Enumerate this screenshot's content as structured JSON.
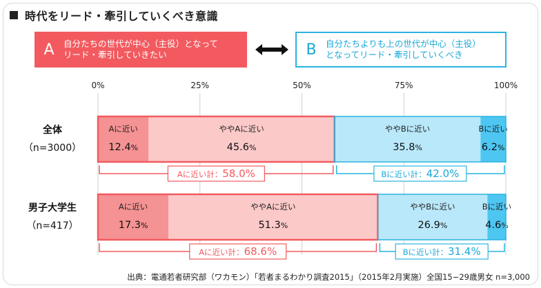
{
  "title": "時代をリード・牽引していくべき意識",
  "legend": {
    "a_letter": "A",
    "a_text": "自分たちの世代が中心（主役）となって\nリード・牽引していきたい",
    "b_letter": "B",
    "b_text": "自分たちよりも上の世代が中心（主役）\nとなってリード・牽引していくべき"
  },
  "source": "出典：電通若者研究部（ワカモン）「若者まるわかり調査2015」（2015年2月実施）全国15−29歳男女 n=3,000",
  "colors": {
    "a_strong": "#f59293",
    "a_light": "#fcc9c9",
    "b_light": "#b9e8fa",
    "b_strong": "#4dc6f2",
    "a_border": "#f25a5f",
    "b_border": "#29b3e0"
  },
  "chart_data": {
    "type": "bar",
    "stacked": true,
    "orientation": "horizontal",
    "xlim": [
      0,
      100
    ],
    "x_ticks": [
      "0%",
      "25%",
      "50%",
      "75%",
      "100%"
    ],
    "x_tick_values": [
      0,
      25,
      50,
      75,
      100
    ],
    "value_suffix": "%",
    "categories": [
      {
        "name": "全体",
        "n": "（n=3000）"
      },
      {
        "name": "男子大学生",
        "n": "（n=417）"
      }
    ],
    "series": [
      {
        "name": "Aに近い",
        "values": [
          12.4,
          17.3
        ],
        "labels": [
          "12.4",
          "17.3"
        ]
      },
      {
        "name": "ややAに近い",
        "values": [
          45.6,
          51.3
        ],
        "labels": [
          "45.6",
          "51.3"
        ]
      },
      {
        "name": "ややBに近い",
        "values": [
          35.8,
          26.9
        ],
        "labels": [
          "35.8",
          "26.9"
        ]
      },
      {
        "name": "Bに近い",
        "values": [
          6.2,
          4.6
        ],
        "labels": [
          "6.2",
          "4.6"
        ]
      }
    ],
    "totals": [
      {
        "a_label": "Aに近い計：",
        "a_value": "58.0%",
        "b_label": "Bに近い計：",
        "b_value": "42.0%"
      },
      {
        "a_label": "Aに近い計：",
        "a_value": "68.6%",
        "b_label": "Bに近い計：",
        "b_value": "31.4%"
      }
    ]
  }
}
